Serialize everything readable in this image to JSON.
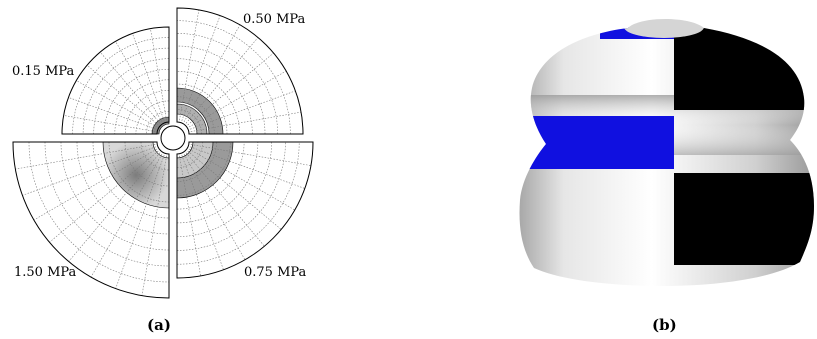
{
  "figure": {
    "panel_a": {
      "caption": "(a)",
      "quadrants": [
        {
          "id": "q1",
          "label": "0.50 MPa"
        },
        {
          "id": "q2",
          "label": "0.15 MPa"
        },
        {
          "id": "q3",
          "label": "1.50 MPa"
        },
        {
          "id": "q4",
          "label": "0.75 MPa"
        }
      ]
    },
    "panel_b": {
      "caption": "(b)"
    },
    "colors": {
      "outline": "#000000",
      "grid": "#7a7a7a",
      "shade_light": "#c8c8c8",
      "shade_dark": "#8a8a8a",
      "body_light": "#f2f2f2",
      "body_shadow": "#a0a0a0",
      "band_blue": "#1010e0",
      "block_black": "#000000"
    }
  }
}
